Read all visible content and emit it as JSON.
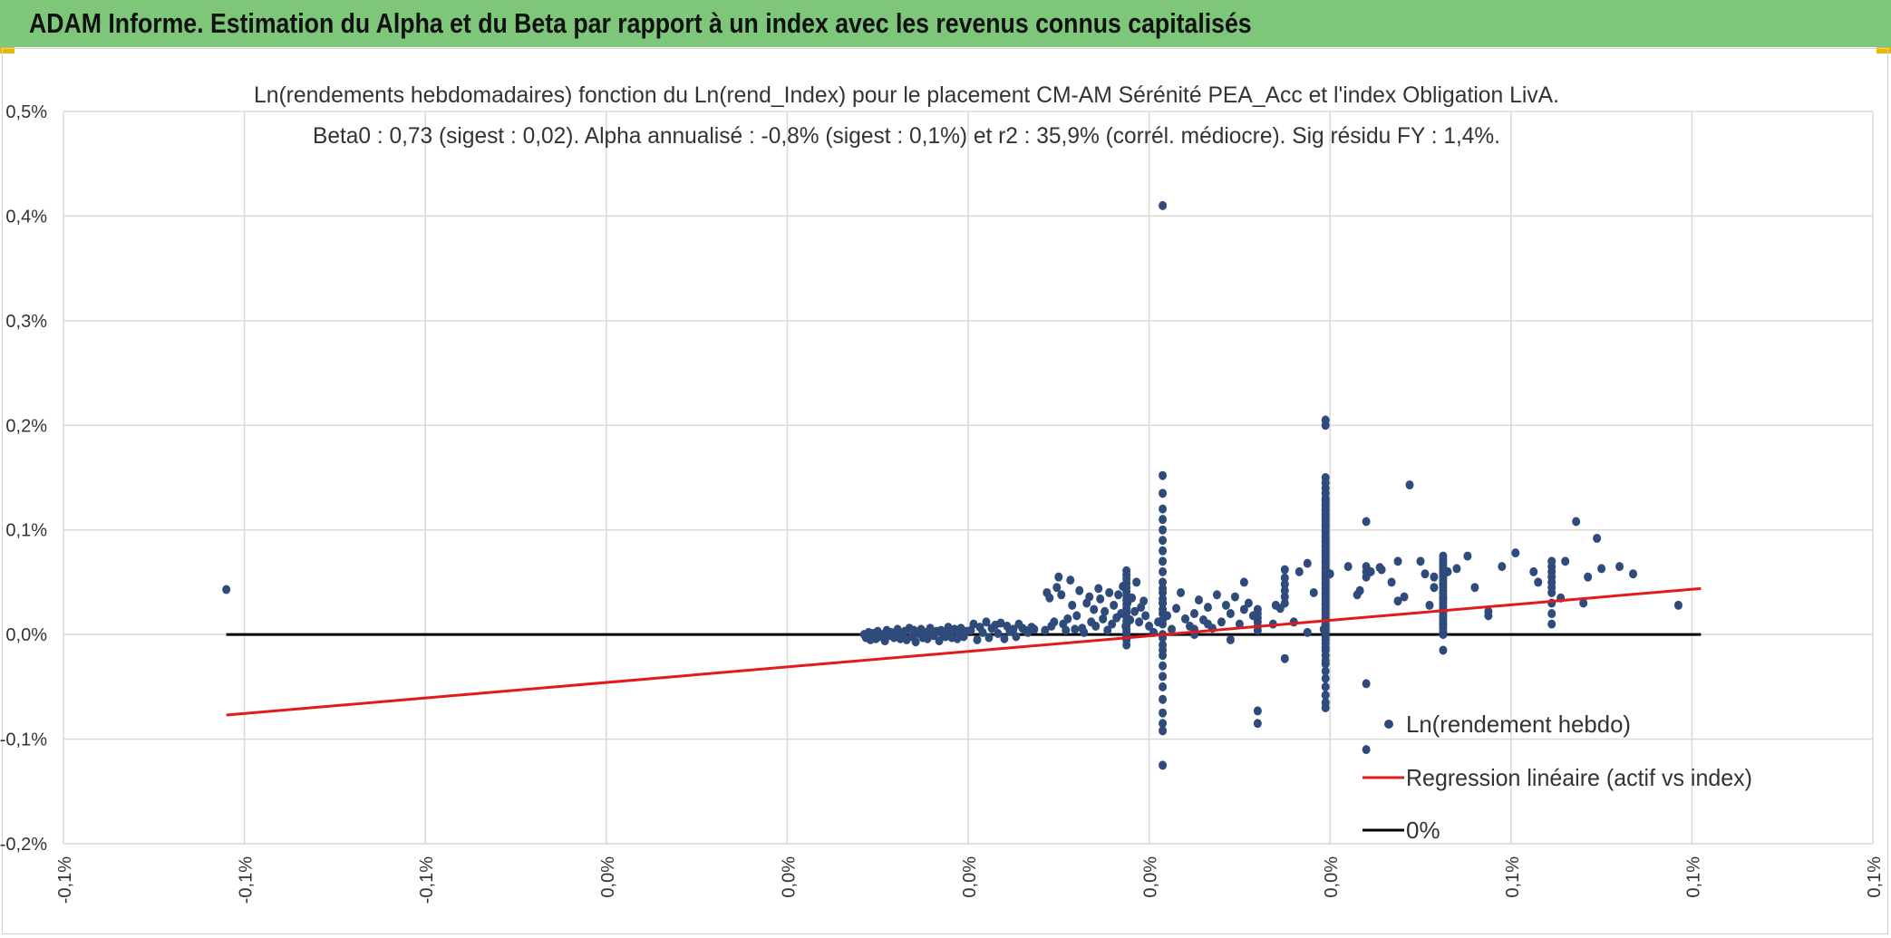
{
  "header": {
    "title": "ADAM Informe. Estimation du Alpha et du Beta par rapport à un index avec les revenus connus capitalisés"
  },
  "colors": {
    "header_bg": "#7dc67a",
    "points": "#2f4b7c",
    "regression": "#e31a1c",
    "zero_line": "#000000",
    "grid": "#d9d9d9"
  },
  "chart_data": {
    "type": "scatter",
    "title_line1": "Ln(rendements hebdomadaires) fonction du Ln(rend_Index) pour le placement CM-AM Sérénité PEA_Acc et l'index Obligation LivA.",
    "title_line2": "Beta0 : 0,73 (sigest : 0,02). Alpha annualisé : -0,8% (sigest : 0,1%) et r2 : 35,9% (corrél. médiocre). Sig résidu FY : 1,4%.",
    "x_range": [
      -0.001,
      0.001
    ],
    "y_range": [
      -0.002,
      0.005
    ],
    "x_ticks": [
      -0.001,
      -0.0008,
      -0.0006,
      -0.0004,
      -0.0002,
      0.0,
      0.0002,
      0.0004,
      0.0006,
      0.0008,
      0.001
    ],
    "x_tick_labels": [
      "-0,1%",
      "-0,1%",
      "-0,1%",
      "0,0%",
      "0,0%",
      "0,0%",
      "0,0%",
      "0,0%",
      "0,1%",
      "0,1%",
      "0,1%"
    ],
    "y_ticks": [
      -0.002,
      -0.001,
      0.0,
      0.001,
      0.002,
      0.003,
      0.004,
      0.005
    ],
    "y_tick_labels": [
      "-0,2%",
      "-0,1%",
      "0,0%",
      "0,1%",
      "0,2%",
      "0,3%",
      "0,4%",
      "0,5%"
    ],
    "legend": [
      "Ln(rendement hebdo)",
      "Regression linéaire (actif vs index)",
      "0%"
    ],
    "legend_position": "bottom-right",
    "regression": {
      "x": [
        -0.00082,
        0.00081
      ],
      "y": [
        -0.00077,
        0.00044
      ]
    },
    "zero_line": {
      "x": [
        -0.00082,
        0.00081
      ],
      "y": [
        0.0,
        0.0
      ]
    },
    "series": [
      {
        "name": "Ln(rendement hebdo)",
        "x": [
          -0.00082,
          -0.000115,
          -0.000113,
          -0.00011,
          -0.000108,
          -0.000105,
          -0.000102,
          -0.0001,
          -9.8e-05,
          -9.5e-05,
          -9.2e-05,
          -9e-05,
          -8.8e-05,
          -8.5e-05,
          -8.2e-05,
          -8e-05,
          -7.8e-05,
          -7.5e-05,
          -7.2e-05,
          -7e-05,
          -6.8e-05,
          -6.5e-05,
          -6.2e-05,
          -6e-05,
          -5.8e-05,
          -5.5e-05,
          -5.2e-05,
          -5e-05,
          -4.8e-05,
          -4.5e-05,
          -4.2e-05,
          -4e-05,
          -3.8e-05,
          -3.5e-05,
          -3.2e-05,
          -3e-05,
          -2.8e-05,
          -2.5e-05,
          -2.2e-05,
          -2e-05,
          -1.8e-05,
          -1.5e-05,
          -1.2e-05,
          -1e-05,
          -8e-06,
          -5e-06,
          -2e-06,
          3e-06,
          6e-06,
          1e-05,
          1.3e-05,
          1.6e-05,
          2e-05,
          2.3e-05,
          2.6e-05,
          3e-05,
          3.3e-05,
          3.6e-05,
          4e-05,
          4.3e-05,
          4.6e-05,
          5e-05,
          5.3e-05,
          5.6e-05,
          6e-05,
          6.3e-05,
          6.6e-05,
          7e-05,
          7.3e-05,
          8.5e-05,
          8.7e-05,
          9e-05,
          9.2e-05,
          9.5e-05,
          9.8e-05,
          0.0001,
          0.000103,
          0.000105,
          0.000108,
          0.00011,
          0.000113,
          0.000115,
          0.000118,
          0.00012,
          0.000123,
          0.000126,
          0.000128,
          0.000131,
          0.000134,
          0.000136,
          0.000139,
          0.000141,
          0.000144,
          0.000146,
          0.000149,
          0.000151,
          0.000154,
          0.000156,
          0.000159,
          0.000161,
          0.000164,
          0.000166,
          0.000169,
          0.000171,
          0.000174,
          0.000176,
          0.000179,
          0.000181,
          0.000184,
          0.000186,
          0.000189,
          0.000191,
          0.000194,
          0.000196,
          0.0002,
          0.000205,
          0.00021,
          0.000215,
          0.00022,
          0.000225,
          0.00023,
          0.000235,
          0.00024,
          0.000245,
          0.00025,
          0.000255,
          0.00026,
          0.000265,
          0.00027,
          0.000275,
          0.00028,
          0.000285,
          0.00029,
          0.000295,
          0.0003,
          0.000305,
          0.00031,
          0.000315,
          0.000175,
          0.000175,
          0.000175,
          0.000175,
          0.000175,
          0.000175,
          0.000175,
          0.000175,
          0.000175,
          0.000175,
          0.000175,
          0.000175,
          0.000175,
          0.000175,
          0.000175,
          0.000175,
          0.000175,
          0.000175,
          0.000175,
          0.000175,
          0.000215,
          0.000215,
          0.000215,
          0.000215,
          0.000215,
          0.000215,
          0.000215,
          0.000215,
          0.000215,
          0.000215,
          0.000215,
          0.000215,
          0.000215,
          0.000215,
          0.000215,
          0.000215,
          0.000215,
          0.000215,
          0.000215,
          0.000215,
          0.000215,
          0.000215,
          0.000215,
          0.000215,
          0.000215,
          0.000215,
          0.000215,
          0.000215,
          0.000215,
          0.000215,
          0.000215,
          0.000215,
          0.000395,
          0.000395,
          0.000395,
          0.000395,
          0.000395,
          0.000395,
          0.000395,
          0.000395,
          0.000395,
          0.000395,
          0.000395,
          0.000395,
          0.000395,
          0.000395,
          0.000395,
          0.000395,
          0.000395,
          0.000395,
          0.000395,
          0.000395,
          0.000395,
          0.000395,
          0.000395,
          0.000395,
          0.000395,
          0.000395,
          0.000395,
          0.000395,
          0.000395,
          0.000395,
          0.000395,
          0.000395,
          0.000395,
          0.000395,
          0.000395,
          0.000395,
          0.000395,
          0.000395,
          0.000395,
          0.000395,
          0.000395,
          0.000395,
          0.000395,
          0.000395,
          0.000395,
          0.000395,
          0.000395,
          0.000395,
          0.000395,
          0.000395,
          0.000395,
          0.000395,
          0.000395,
          0.000395,
          0.000395,
          0.000395,
          0.000395,
          0.000395,
          0.000395,
          0.000395,
          0.000395,
          0.000395,
          0.000395,
          0.000395,
          0.000395,
          0.000395,
          0.000395,
          0.000395,
          0.000395,
          0.000395,
          0.000395,
          0.000395,
          0.000395,
          0.000525,
          0.000525,
          0.000525,
          0.000525,
          0.000525,
          0.000525,
          0.000525,
          0.000525,
          0.000525,
          0.000525,
          0.000525,
          0.000525,
          0.000525,
          0.000525,
          0.000525,
          0.000525,
          0.000525,
          0.000525,
          0.000525,
          0.000525,
          0.000525,
          0.000525,
          0.000525,
          0.000525,
          0.000525,
          0.000525,
          0.000525,
          0.000525,
          0.000525,
          0.000525,
          0.00032,
          0.00032,
          0.00032,
          0.00032,
          0.00032,
          0.00032,
          0.00032,
          0.00032,
          0.00035,
          0.00035,
          0.00035,
          0.00035,
          0.00035,
          0.00035,
          0.00035,
          0.00044,
          0.00044,
          0.00044,
          0.00044,
          0.00044,
          0.00044,
          0.000645,
          0.000645,
          0.000645,
          0.000645,
          0.000645,
          0.000645,
          0.000645,
          0.000645,
          0.000645,
          0.000645,
          0.000305,
          0.000337,
          0.000345,
          0.000366,
          0.000375,
          0.000382,
          0.000393,
          0.0004,
          0.00042,
          0.000433,
          0.000445,
          0.000455,
          0.000468,
          0.000475,
          0.000482,
          0.000488,
          0.0005,
          0.00051,
          0.000515,
          0.00053,
          0.00054,
          0.000552,
          0.00056,
          0.000575,
          0.00059,
          0.000625,
          0.00066,
          0.000672,
          0.000685,
          0.0007,
          0.00025,
          0.00025,
          0.000265,
          0.00029,
          0.00034,
          0.00036,
          0.000375,
          0.00043,
          0.000457,
          0.000475,
          0.000505,
          0.000515,
          0.000575,
          0.000605,
          0.00063,
          0.000655,
          0.00068,
          0.000695,
          0.00072,
          0.000735,
          0.000785
        ],
        "y": [
          0.00043,
          0.0,
          -3e-05,
          2e-05,
          -5e-05,
          1e-05,
          -4e-05,
          3e-05,
          -2e-05,
          0.0,
          -6e-05,
          4e-05,
          -1e-05,
          2e-05,
          -3e-05,
          0.0,
          5e-05,
          -4e-05,
          1e-05,
          3e-05,
          -5e-05,
          6e-05,
          -2e-05,
          4e-05,
          -7e-05,
          1e-05,
          5e-05,
          -3e-05,
          2e-05,
          -4e-05,
          6e-05,
          0.0,
          -1e-05,
          3e-05,
          -6e-05,
          4e-05,
          1e-05,
          -2e-05,
          7e-05,
          2e-05,
          -3e-05,
          5e-05,
          -4e-05,
          1e-05,
          6e-05,
          -2e-05,
          3e-05,
          4e-05,
          0.0001,
          -5e-05,
          7e-05,
          2e-05,
          0.00012,
          -3e-05,
          6e-05,
          9e-05,
          1e-05,
          0.00011,
          -4e-05,
          8e-05,
          3e-05,
          5e-05,
          -2e-05,
          0.0001,
          6e-05,
          4e-05,
          2e-05,
          7e-05,
          5e-05,
          4e-05,
          0.0004,
          0.00035,
          8e-05,
          0.00012,
          0.00045,
          0.00055,
          0.00038,
          0.0001,
          4e-05,
          0.00015,
          0.00052,
          0.00028,
          5e-05,
          0.00018,
          0.00042,
          6e-05,
          2e-05,
          0.0003,
          0.00036,
          0.00012,
          0.00024,
          8e-05,
          0.00044,
          0.00034,
          0.00015,
          0.00022,
          4e-05,
          0.0004,
          0.0001,
          0.00028,
          0.00016,
          0.00038,
          0.0002,
          0.00046,
          8e-05,
          0.0003,
          0.00014,
          0.00035,
          0.00022,
          0.0005,
          0.00012,
          0.00026,
          0.00032,
          0.00018,
          8e-05,
          2e-05,
          0.00012,
          0.0003,
          0.00018,
          5e-05,
          0.00025,
          0.0004,
          0.00015,
          8e-05,
          0.0002,
          0.00033,
          0.00014,
          0.00026,
          6e-05,
          0.00038,
          0.00012,
          0.00028,
          0.0002,
          0.00036,
          0.0001,
          0.00024,
          0.0003,
          0.00018,
          1e-05,
          5e-05,
          9e-05,
          0.00013,
          0.00017,
          0.00021,
          0.00025,
          0.00029,
          0.00033,
          0.00037,
          0.00041,
          0.00045,
          0.00049,
          0.00053,
          0.00057,
          -2e-05,
          -5e-05,
          -0.0001,
          0.00061,
          3e-05,
          -0.00125,
          -0.00092,
          -0.00085,
          -0.00075,
          -0.00062,
          -0.0005,
          -0.0004,
          -0.0003,
          -0.0002,
          -0.0001,
          0.0,
          0.0001,
          0.0002,
          0.0003,
          0.0004,
          0.0005,
          0.0006,
          0.0007,
          0.0008,
          0.0009,
          0.001,
          0.0011,
          0.0012,
          0.00135,
          0.00152,
          0.0041,
          0.00014,
          0.00024,
          0.00034,
          0.00044,
          -3e-05,
          -0.00015,
          -0.0007,
          -0.00065,
          -0.00058,
          -0.0005,
          -0.00042,
          -0.00035,
          -0.00028,
          -0.0002,
          -0.00012,
          -5e-05,
          0.0,
          5e-05,
          0.0001,
          0.00015,
          0.0002,
          0.00025,
          0.0003,
          0.00035,
          0.0004,
          0.00045,
          0.0005,
          0.00055,
          0.0006,
          0.00065,
          0.0007,
          0.00075,
          0.0008,
          0.00085,
          0.0009,
          0.00095,
          0.001,
          0.00105,
          0.0011,
          0.00115,
          0.0012,
          0.00125,
          0.0013,
          0.00135,
          0.0014,
          0.00145,
          0.0015,
          0.002,
          0.00205,
          3e-05,
          8e-05,
          0.00013,
          0.00018,
          0.00023,
          0.00028,
          0.00033,
          0.00038,
          0.00043,
          0.00048,
          0.00053,
          0.00058,
          0.00063,
          0.00068,
          0.00073,
          0.00078,
          0.00083,
          0.00088,
          0.00093,
          0.00098,
          0.00103,
          0.00108,
          0.00113,
          0.00118,
          0.00123,
          0.00128,
          -2e-05,
          -8e-05,
          -0.00015,
          -0.00025,
          -0.00015,
          0.0,
          3e-05,
          6e-05,
          9e-05,
          0.00012,
          0.00015,
          0.00018,
          0.00021,
          0.00024,
          0.00027,
          0.0003,
          0.00033,
          0.00036,
          0.00039,
          0.00042,
          0.00045,
          0.00048,
          0.00051,
          0.00054,
          0.00057,
          0.0006,
          0.00063,
          0.00066,
          0.00069,
          0.00072,
          0.00075,
          0.0001,
          0.00022,
          0.00034,
          -0.00073,
          -0.00085,
          4e-05,
          8e-05,
          0.00012,
          0.00016,
          0.0002,
          0.00024,
          -0.00023,
          0.0003,
          0.00036,
          0.00042,
          0.00048,
          0.00054,
          0.00062,
          -0.00047,
          -0.0011,
          0.00055,
          0.0006,
          0.00065,
          0.00108,
          0.0001,
          0.0002,
          0.0003,
          0.0004,
          0.00045,
          0.0005,
          0.00055,
          0.0006,
          0.00065,
          0.0007,
          0.0005,
          0.0001,
          0.00025,
          0.0006,
          0.00068,
          0.0004,
          5e-05,
          0.00058,
          0.00065,
          0.00042,
          0.0006,
          0.00064,
          0.0005,
          0.00032,
          0.00036,
          0.00143,
          0.0007,
          0.00028,
          0.00055,
          0.0006,
          0.00063,
          0.00075,
          0.00045,
          0.00022,
          0.00065,
          0.0006,
          0.0007,
          0.00108,
          0.00055,
          0.00063,
          5e-05,
          0.0,
          0.0001,
          -5e-05,
          0.00028,
          0.00012,
          2e-05,
          0.00038,
          0.00062,
          0.0007,
          0.00058,
          0.00045,
          0.00018,
          0.00078,
          0.0005,
          0.00035,
          0.0003,
          0.00092,
          0.00065,
          0.00058,
          0.00028
        ]
      }
    ]
  }
}
